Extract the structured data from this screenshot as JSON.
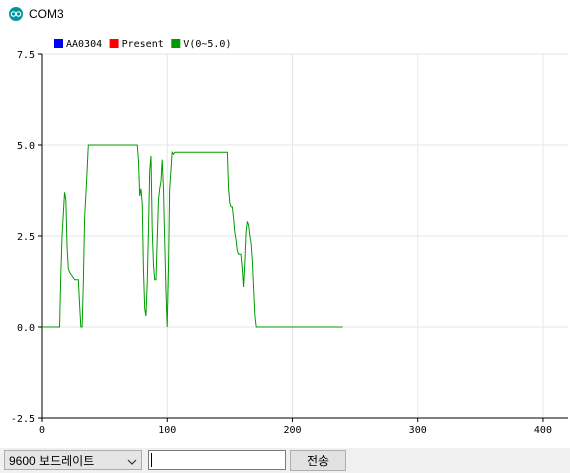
{
  "window": {
    "title": "COM3"
  },
  "chart_data": {
    "type": "line",
    "series": [
      {
        "name": "AA0304",
        "color": "#0000ff",
        "points": []
      },
      {
        "name": "Present",
        "color": "#ff0000",
        "points": []
      },
      {
        "name": "V(0~5.0)",
        "color": "#009a00",
        "points": [
          [
            0,
            0
          ],
          [
            14,
            0
          ],
          [
            15,
            1.5
          ],
          [
            16,
            2.5
          ],
          [
            18,
            3.7
          ],
          [
            19,
            3.5
          ],
          [
            20,
            2.2
          ],
          [
            21,
            1.6
          ],
          [
            22,
            1.5
          ],
          [
            24,
            1.4
          ],
          [
            26,
            1.3
          ],
          [
            29,
            1.3
          ],
          [
            30,
            0.6
          ],
          [
            31,
            0
          ],
          [
            32,
            0
          ],
          [
            33,
            1.2
          ],
          [
            34,
            3.0
          ],
          [
            35,
            3.6
          ],
          [
            36,
            4.3
          ],
          [
            37,
            5.0
          ],
          [
            76,
            5.0
          ],
          [
            77,
            4.6
          ],
          [
            78,
            3.6
          ],
          [
            79,
            3.8
          ],
          [
            80,
            3.4
          ],
          [
            81,
            1.6
          ],
          [
            82,
            0.5
          ],
          [
            83,
            0.3
          ],
          [
            84,
            1.2
          ],
          [
            85,
            2.7
          ],
          [
            86,
            4.3
          ],
          [
            87,
            4.7
          ],
          [
            88,
            2.7
          ],
          [
            89,
            1.7
          ],
          [
            90,
            1.3
          ],
          [
            91,
            1.3
          ],
          [
            92,
            2.4
          ],
          [
            93,
            3.5
          ],
          [
            94,
            3.8
          ],
          [
            95,
            4.0
          ],
          [
            96,
            4.6
          ],
          [
            97,
            3.8
          ],
          [
            98,
            2.4
          ],
          [
            99,
            1.0
          ],
          [
            100,
            0
          ],
          [
            101,
            1.6
          ],
          [
            102,
            3.8
          ],
          [
            103,
            4.3
          ],
          [
            104,
            4.8
          ],
          [
            105,
            4.75
          ],
          [
            106,
            4.8
          ],
          [
            148,
            4.8
          ],
          [
            149,
            3.8
          ],
          [
            150,
            3.4
          ],
          [
            151,
            3.3
          ],
          [
            152,
            3.3
          ],
          [
            153,
            3.0
          ],
          [
            154,
            2.6
          ],
          [
            155,
            2.4
          ],
          [
            156,
            2.1
          ],
          [
            157,
            2.0
          ],
          [
            159,
            2.0
          ],
          [
            160,
            1.6
          ],
          [
            161,
            1.1
          ],
          [
            162,
            1.8
          ],
          [
            163,
            2.6
          ],
          [
            164,
            2.9
          ],
          [
            165,
            2.8
          ],
          [
            166,
            2.5
          ],
          [
            167,
            2.3
          ],
          [
            168,
            1.8
          ],
          [
            169,
            1.0
          ],
          [
            170,
            0.3
          ],
          [
            171,
            0
          ],
          [
            240,
            0
          ]
        ]
      }
    ],
    "xlim": [
      0,
      420
    ],
    "ylim": [
      -2.5,
      7.5
    ],
    "xticks": [
      0,
      100,
      200,
      300,
      400
    ],
    "yticks": [
      -2.5,
      0.0,
      2.5,
      5.0,
      7.5
    ],
    "xtick_labels": [
      "0",
      "100",
      "200",
      "300",
      "400"
    ],
    "ytick_labels": [
      "-2.5",
      "0.0",
      "2.5",
      "5.0",
      "7.5"
    ],
    "grid": true,
    "legend": "top-left"
  },
  "controls": {
    "baud_label": "9600 보드레이트",
    "message_value": "",
    "send_label": "전송"
  }
}
